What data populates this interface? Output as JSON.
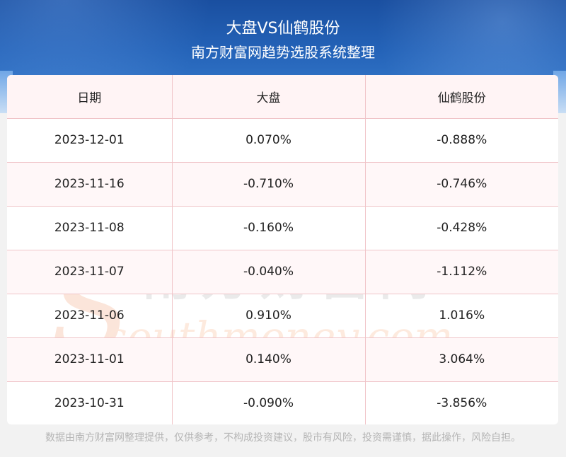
{
  "header": {
    "title": "大盘VS仙鹤股份",
    "subtitle": "南方财富网趋势选股系统整理"
  },
  "table": {
    "columns": [
      "日期",
      "大盘",
      "仙鹤股份"
    ],
    "rows": [
      [
        "2023-12-01",
        "0.070%",
        "-0.888%"
      ],
      [
        "2023-11-16",
        "-0.710%",
        "-0.746%"
      ],
      [
        "2023-11-08",
        "-0.160%",
        "-0.428%"
      ],
      [
        "2023-11-07",
        "-0.040%",
        "-1.112%"
      ],
      [
        "2023-11-06",
        "0.910%",
        "1.016%"
      ],
      [
        "2023-11-01",
        "0.140%",
        "3.064%"
      ],
      [
        "2023-10-31",
        "-0.090%",
        "-3.856%"
      ]
    ]
  },
  "watermark": {
    "cn": "南方财富网",
    "en": "southmoney.com"
  },
  "footer": {
    "disclaimer": "数据由南方财富网整理提供，仅供参考，不构成投资建议，股市有风险，投资需谨慎，据此操作，风险自担。"
  }
}
